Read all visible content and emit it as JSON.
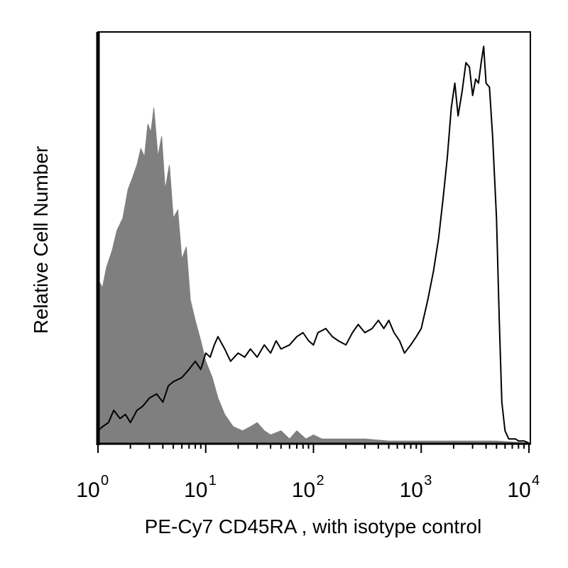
{
  "chart_data": {
    "type": "area",
    "xlabel": "PE-Cy7 CD45RA , with isotype control",
    "ylabel": "Relative Cell Number",
    "x_scale": "log",
    "xlim": [
      1,
      10000
    ],
    "ylim": [
      0,
      100
    ],
    "x_ticks": [
      {
        "base": "10",
        "exp": "0",
        "value": 1
      },
      {
        "base": "10",
        "exp": "1",
        "value": 10
      },
      {
        "base": "10",
        "exp": "2",
        "value": 100
      },
      {
        "base": "10",
        "exp": "3",
        "value": 1000
      },
      {
        "base": "10",
        "exp": "4",
        "value": 10000
      }
    ],
    "grid": false,
    "legend": "none",
    "series": [
      {
        "role": "isotype control",
        "style": "filled",
        "color": "#7f7f7f",
        "x": [
          1.0,
          1.1,
          1.2,
          1.35,
          1.5,
          1.7,
          1.9,
          2.1,
          2.3,
          2.5,
          2.7,
          2.9,
          3.1,
          3.3,
          3.6,
          3.9,
          4.2,
          4.6,
          5.0,
          5.5,
          6.0,
          6.6,
          7.2,
          8.0,
          9.0,
          10.0,
          11.5,
          13.0,
          15.0,
          18.0,
          22.0,
          26.0,
          30.0,
          35.0,
          40.0,
          50.0,
          60.0,
          70.0,
          85.0,
          100.0,
          120.0,
          150.0,
          200.0,
          300.0,
          500.0,
          1000.0,
          2000.0,
          5000.0,
          10000.0
        ],
        "y": [
          40,
          38,
          43,
          47,
          52,
          55,
          62,
          65,
          68,
          72,
          70,
          78,
          76,
          82,
          70,
          75,
          62,
          68,
          55,
          57,
          45,
          48,
          35,
          30,
          25,
          20,
          16,
          11,
          7,
          4,
          3,
          4,
          5,
          3,
          2,
          3,
          1,
          3,
          1,
          2,
          1,
          1,
          1,
          1,
          0.5,
          0.5,
          0.5,
          0.5,
          0
        ]
      },
      {
        "role": "PE-Cy7 CD45RA",
        "style": "outline",
        "color": "#000000",
        "x": [
          1.0,
          1.1,
          1.25,
          1.4,
          1.6,
          1.8,
          2.0,
          2.3,
          2.6,
          3.0,
          3.5,
          4.0,
          4.5,
          5.0,
          6.0,
          7.0,
          8.0,
          9.0,
          10.0,
          11.0,
          12.0,
          13.0,
          15.0,
          17.0,
          20.0,
          23.0,
          26.0,
          30.0,
          35.0,
          40.0,
          45.0,
          50.0,
          60.0,
          70.0,
          80.0,
          90.0,
          100.0,
          110.0,
          130.0,
          150.0,
          170.0,
          200.0,
          230.0,
          260.0,
          300.0,
          350.0,
          400.0,
          450.0,
          500.0,
          560.0,
          630.0,
          700.0,
          800.0,
          900.0,
          1000.0,
          1150.0,
          1300.0,
          1450.0,
          1600.0,
          1750.0,
          1900.0,
          2050.0,
          2200.0,
          2400.0,
          2600.0,
          2800.0,
          3000.0,
          3200.0,
          3400.0,
          3600.0,
          3800.0,
          4000.0,
          4300.0,
          4600.0,
          5000.0,
          5300.0,
          5600.0,
          6000.0,
          6500.0,
          7000.0,
          7500.0,
          8000.0,
          8500.0,
          9000.0,
          10000.0
        ],
        "y": [
          3,
          4,
          5,
          8,
          6,
          7,
          5,
          8,
          9,
          11,
          12,
          10,
          14,
          15,
          16,
          18,
          20,
          18,
          22,
          21,
          24,
          26,
          23,
          20,
          22,
          21,
          23,
          21,
          24,
          22,
          25,
          23,
          24,
          26,
          27,
          25,
          24,
          27,
          28,
          26,
          25,
          24,
          27,
          29,
          27,
          28,
          30,
          28,
          30,
          27,
          25,
          22,
          24,
          26,
          28,
          35,
          42,
          50,
          60,
          70,
          82,
          88,
          80,
          86,
          93,
          92,
          85,
          89,
          88,
          93,
          97,
          88,
          87,
          75,
          55,
          30,
          10,
          3,
          1,
          1,
          1,
          0.5,
          0.5,
          0.5,
          0
        ]
      }
    ]
  }
}
